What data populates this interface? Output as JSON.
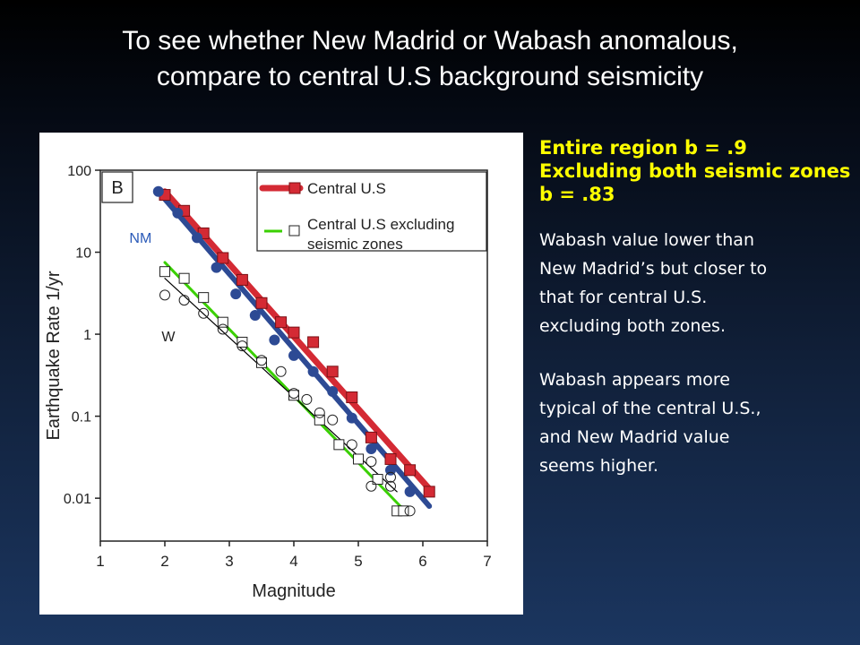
{
  "slide": {
    "title_line1": "To see whether New Madrid or Wabash anomalous,",
    "title_line2": "compare to central U.S background seismicity"
  },
  "side_text": {
    "highlight_lines": [
      "Entire region b = .9",
      "Excluding both seismic zones",
      "b = .83"
    ],
    "paragraph1_lines": [
      "Wabash value lower than",
      "New Madrid’s but closer to",
      "that for central U.S.",
      "excluding both zones."
    ],
    "paragraph2_lines": [
      "Wabash appears more",
      "typical of the central U.S.,",
      "and New Madrid value",
      "seems higher."
    ]
  },
  "colors": {
    "central_us": "#d42a34",
    "central_us_excl": "#3ad000",
    "new_madrid": "#2d4a94",
    "wabash": "#000000",
    "nm_label": "#2a5ab8"
  },
  "chart_data": {
    "type": "scatter",
    "panel_label": "B",
    "xlabel": "Magnitude",
    "ylabel": "Earthquake Rate 1/yr",
    "xlim": [
      1,
      7
    ],
    "ylim": [
      0.003,
      100
    ],
    "yscale": "log",
    "xticks": [
      1,
      2,
      3,
      4,
      5,
      6,
      7
    ],
    "yticks": [
      {
        "value": 100,
        "label": "100"
      },
      {
        "value": 10,
        "label": "10"
      },
      {
        "value": 1,
        "label": "1"
      },
      {
        "value": 0.1,
        "label": "0.1"
      },
      {
        "value": 0.01,
        "label": "0.01"
      }
    ],
    "legend": {
      "placement": "top-right",
      "entries": [
        {
          "label_lines": [
            "Central U.S"
          ],
          "color": "#d42a34",
          "marker": "filled-square"
        },
        {
          "label_lines": [
            "Central U.S excluding",
            "seismic zones"
          ],
          "color": "#3ad000",
          "marker": "open-square"
        }
      ]
    },
    "annotations": [
      {
        "text": "NM",
        "x": 1.45,
        "y": 13
      },
      {
        "text": "W",
        "x": 1.95,
        "y": 0.82
      }
    ],
    "series": [
      {
        "name": "Central U.S",
        "marker": "filled-square",
        "color": "#d42a34",
        "points": [
          [
            2.0,
            50
          ],
          [
            2.3,
            32
          ],
          [
            2.6,
            17
          ],
          [
            2.9,
            8.5
          ],
          [
            3.2,
            4.6
          ],
          [
            3.5,
            2.4
          ],
          [
            3.8,
            1.4
          ],
          [
            4.0,
            1.05
          ],
          [
            4.3,
            0.8
          ],
          [
            4.6,
            0.35
          ],
          [
            4.9,
            0.17
          ],
          [
            5.2,
            0.055
          ],
          [
            5.5,
            0.03
          ],
          [
            5.8,
            0.022
          ],
          [
            6.1,
            0.012
          ]
        ],
        "fit": [
          [
            2.0,
            55
          ],
          [
            6.1,
            0.013
          ]
        ]
      },
      {
        "name": "New Madrid",
        "marker": "filled-circle",
        "color": "#2d4a94",
        "points": [
          [
            1.9,
            55
          ],
          [
            2.2,
            30
          ],
          [
            2.5,
            15
          ],
          [
            2.8,
            6.5
          ],
          [
            3.1,
            3.1
          ],
          [
            3.4,
            1.7
          ],
          [
            3.7,
            0.85
          ],
          [
            4.0,
            0.55
          ],
          [
            4.3,
            0.35
          ],
          [
            4.6,
            0.2
          ],
          [
            4.9,
            0.095
          ],
          [
            5.2,
            0.04
          ],
          [
            5.5,
            0.022
          ],
          [
            5.8,
            0.012
          ]
        ],
        "fit": [
          [
            1.9,
            55
          ],
          [
            6.1,
            0.008
          ]
        ]
      },
      {
        "name": "Central U.S excluding seismic zones",
        "marker": "open-square",
        "color": "#000000",
        "points": [
          [
            2.0,
            5.8
          ],
          [
            2.3,
            4.8
          ],
          [
            2.6,
            2.8
          ],
          [
            2.9,
            1.4
          ],
          [
            3.2,
            0.8
          ],
          [
            3.5,
            0.45
          ],
          [
            4.0,
            0.18
          ],
          [
            4.4,
            0.09
          ],
          [
            4.7,
            0.045
          ],
          [
            5.0,
            0.03
          ],
          [
            5.3,
            0.017
          ],
          [
            5.6,
            0.007
          ],
          [
            5.7,
            0.007
          ]
        ],
        "fit": [
          [
            2.0,
            7.5
          ],
          [
            5.65,
            0.008
          ]
        ]
      },
      {
        "name": "Wabash",
        "marker": "open-circle",
        "color": "#000000",
        "points": [
          [
            2.0,
            3.0
          ],
          [
            2.3,
            2.6
          ],
          [
            2.6,
            1.8
          ],
          [
            2.9,
            1.15
          ],
          [
            3.2,
            0.72
          ],
          [
            3.5,
            0.48
          ],
          [
            3.8,
            0.35
          ],
          [
            4.0,
            0.19
          ],
          [
            4.2,
            0.16
          ],
          [
            4.4,
            0.11
          ],
          [
            4.6,
            0.09
          ],
          [
            4.9,
            0.045
          ],
          [
            5.2,
            0.028
          ],
          [
            5.5,
            0.018
          ],
          [
            5.2,
            0.014
          ],
          [
            5.5,
            0.014
          ],
          [
            5.8,
            0.007
          ]
        ],
        "fit": [
          [
            2.0,
            4.8
          ],
          [
            5.6,
            0.012
          ]
        ]
      }
    ]
  }
}
